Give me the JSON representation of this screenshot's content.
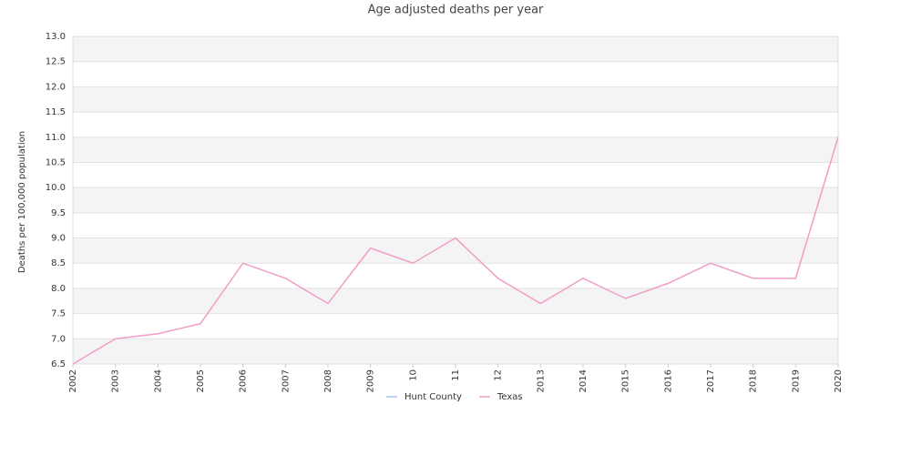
{
  "chart_data": {
    "type": "line",
    "title": "Age adjusted deaths per year",
    "y_label": "Deaths per 100,000 population",
    "categories": [
      "2002",
      "2003",
      "2004",
      "2005",
      "2006",
      "2007",
      "2008",
      "2009",
      "10",
      "11",
      "12",
      "2013",
      "2014",
      "2015",
      "2016",
      "2017",
      "2018",
      "2019",
      "2020"
    ],
    "series": [
      {
        "name": "Hunt County",
        "color": "#a8c8ec",
        "values": [
          null,
          null,
          null,
          null,
          null,
          null,
          null,
          null,
          null,
          null,
          null,
          null,
          null,
          null,
          null,
          null,
          null,
          null,
          null
        ]
      },
      {
        "name": "Texas",
        "color": "#f29cc8",
        "values": [
          6.5,
          7.0,
          7.1,
          7.3,
          8.5,
          8.2,
          7.7,
          8.8,
          8.5,
          9.0,
          8.2,
          7.7,
          8.2,
          7.8,
          8.1,
          8.5,
          8.2,
          8.2,
          11.0
        ]
      }
    ],
    "ylim": [
      6.5,
      13
    ],
    "yticks": [
      {
        "value": 13,
        "label": "13.0"
      },
      12.5,
      {
        "value": 12,
        "label": "12.0"
      },
      11.5,
      {
        "value": 11,
        "label": "11.0"
      },
      10.5,
      {
        "value": 10,
        "label": "10.0"
      },
      9.5,
      {
        "value": 9,
        "label": "9.0"
      },
      8.5,
      {
        "value": 8,
        "label": "8.0"
      },
      7.5,
      {
        "value": 7,
        "label": "7.0"
      },
      6.5
    ],
    "grid": true,
    "legend": "bottom"
  }
}
